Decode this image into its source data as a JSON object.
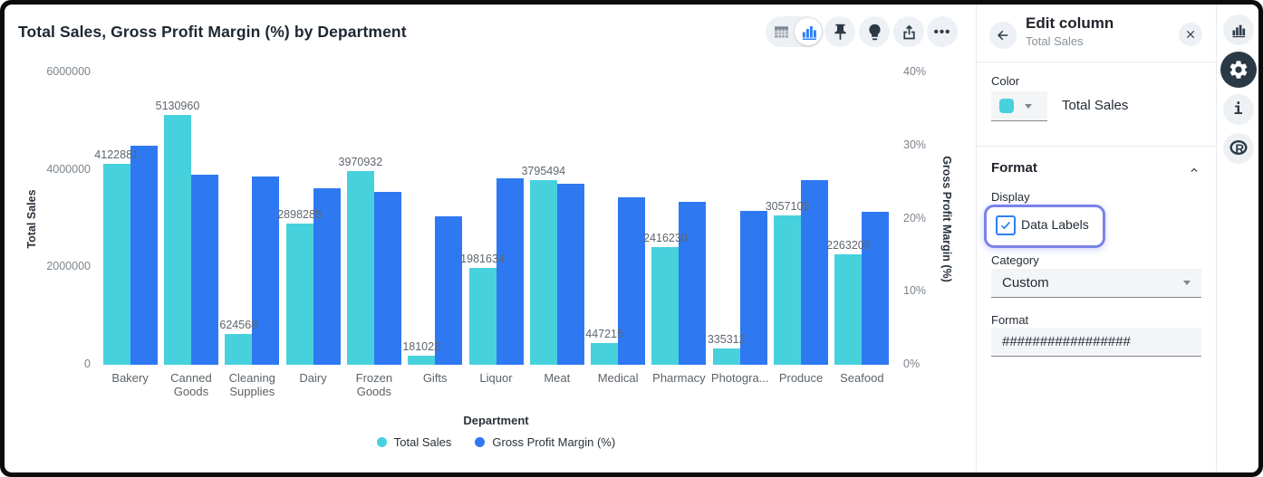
{
  "header": {
    "title": "Total Sales, Gross Profit Margin (%) by Department"
  },
  "toolbar": {
    "view_toggle": {
      "options": [
        "table",
        "chart"
      ],
      "selected": "chart"
    },
    "buttons": [
      "pin",
      "lightbulb",
      "export",
      "more"
    ]
  },
  "chart_data": {
    "type": "bar",
    "title": "Total Sales, Gross Profit Margin (%) by Department",
    "categories": [
      "Bakery",
      "Canned Goods",
      "Cleaning Supplies",
      "Dairy",
      "Frozen Goods",
      "Gifts",
      "Liquor",
      "Meat",
      "Medical",
      "Pharmacy",
      "Photogra...",
      "Produce",
      "Seafood"
    ],
    "series": [
      {
        "name": "Total Sales",
        "axis": "left",
        "color": "#47D1DD",
        "data_labels": true,
        "values": [
          4122881,
          5130960,
          624568,
          2898285,
          3970932,
          181022,
          1981634,
          3795494,
          447215,
          2416230,
          335312,
          3057105,
          2263205
        ]
      },
      {
        "name": "Gross Profit Margin (%)",
        "axis": "right",
        "color": "#2E79F2",
        "data_labels": false,
        "values": [
          30,
          26,
          25.8,
          24.2,
          23.6,
          20.3,
          25.5,
          24.8,
          22.9,
          22.3,
          21.1,
          25.3,
          20.9
        ]
      }
    ],
    "xlabel": "Department",
    "left_axis": {
      "title": "Total Sales",
      "max": 6000000,
      "ticks": [
        {
          "v": 0,
          "label": "0"
        },
        {
          "v": 2000000,
          "label": "2000000"
        },
        {
          "v": 4000000,
          "label": "4000000"
        },
        {
          "v": 6000000,
          "label": "6000000"
        }
      ]
    },
    "right_axis": {
      "title": "Gross Profit Margin (%)",
      "max": 40,
      "ticks": [
        {
          "v": 0,
          "label": "0%"
        },
        {
          "v": 10,
          "label": "10%"
        },
        {
          "v": 20,
          "label": "20%"
        },
        {
          "v": 30,
          "label": "30%"
        },
        {
          "v": 40,
          "label": "40%"
        }
      ]
    },
    "legend_position": "bottom",
    "grid": false
  },
  "panel": {
    "title": "Edit column",
    "subtitle": "Total Sales",
    "color_section": {
      "label": "Color",
      "swatch_color": "#47D1DD",
      "series_name": "Total Sales"
    },
    "format_section": {
      "title": "Format",
      "display_label": "Display",
      "data_labels_checkbox": {
        "label": "Data Labels",
        "checked": true
      },
      "category_label": "Category",
      "category_value": "Custom",
      "format_label": "Format",
      "format_value": "#################"
    }
  },
  "rail": {
    "icons": [
      "chart",
      "settings",
      "info",
      "r-logo"
    ]
  },
  "colors": {
    "teal": "#47D1DD",
    "blue": "#2E79F2",
    "accent": "#2D7FF9",
    "highlight_ring": "#7B82E9",
    "icon_dark": "#2C3A47"
  }
}
